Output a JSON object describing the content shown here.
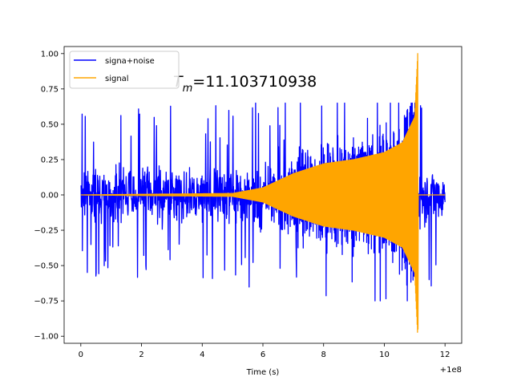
{
  "chart_data": {
    "type": "line",
    "title": "",
    "xlabel": "Time (s)",
    "ylabel": "",
    "x_offset_label": "+1e8",
    "xlim": [
      -0.55,
      12.55
    ],
    "ylim": [
      -1.05,
      1.05
    ],
    "xticks": [
      0,
      2,
      4,
      6,
      8,
      10,
      12
    ],
    "xtick_labels": [
      "0",
      "2",
      "4",
      "6",
      "8",
      "10",
      "12"
    ],
    "yticks": [
      -1.0,
      -0.75,
      -0.5,
      -0.25,
      0.0,
      0.25,
      0.5,
      0.75,
      1.0
    ],
    "ytick_labels": [
      "−1.00",
      "−0.75",
      "−0.50",
      "−0.25",
      "0.00",
      "0.25",
      "0.50",
      "0.75",
      "1.00"
    ],
    "grid": false,
    "legend_position": "top-left",
    "annotation": {
      "symbol": "T",
      "subscript": "m",
      "value_text": "=11.103710938"
    },
    "series": [
      {
        "name": "signa+noise",
        "color": "#0000ff",
        "x_range": [
          0,
          12
        ],
        "noise_band": [
          -0.3,
          0.3
        ],
        "peak_range": [
          -0.75,
          0.65
        ]
      },
      {
        "name": "signal",
        "color": "#ffa500",
        "x_range": [
          0,
          12
        ],
        "merger_time": 11.1,
        "max_amplitude": 1.0,
        "min_amplitude": -0.95,
        "envelope": [
          {
            "x": 0,
            "y": 0.0
          },
          {
            "x": 5.0,
            "y": 0.01
          },
          {
            "x": 6.0,
            "y": 0.05
          },
          {
            "x": 7.0,
            "y": 0.15
          },
          {
            "x": 8.0,
            "y": 0.22
          },
          {
            "x": 9.0,
            "y": 0.25
          },
          {
            "x": 10.0,
            "y": 0.3
          },
          {
            "x": 10.6,
            "y": 0.37
          },
          {
            "x": 11.0,
            "y": 0.55
          },
          {
            "x": 11.1,
            "y": 1.0
          }
        ]
      }
    ]
  }
}
